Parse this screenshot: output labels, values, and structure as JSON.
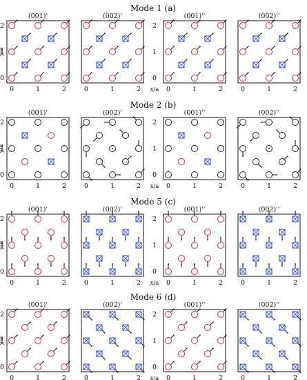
{
  "colors": {
    "red": "#d32f2f",
    "blue": "#1f3fd6",
    "black": "#222222"
  },
  "axis_labels": {
    "y": "y/a",
    "x": "x/a"
  },
  "x_ticks": [
    "0",
    "1",
    "2"
  ],
  "y_ticks": [
    "0",
    "1",
    "2"
  ],
  "modes": [
    {
      "title": "Mode 1 (a)",
      "panels": [
        {
          "label": "(001)'",
          "fill": "mix",
          "arrow": "diag"
        },
        {
          "label": "(002)'",
          "fill": "mix",
          "arrow": "diag"
        },
        {
          "label": "(001)''",
          "fill": "mix",
          "arrow": "diag"
        },
        {
          "label": "(002)''",
          "fill": "mix",
          "arrow": "diag"
        }
      ]
    },
    {
      "title": "Mode 2 (b)",
      "panels": [
        {
          "label": "(001)'",
          "fill": "mode2",
          "arrow": "none"
        },
        {
          "label": "(002)'",
          "fill": "black",
          "arrow": "rot"
        },
        {
          "label": "(001)''",
          "fill": "mode2",
          "arrow": "none"
        },
        {
          "label": "(002)''",
          "fill": "black",
          "arrow": "rot"
        }
      ]
    },
    {
      "title": "Mode 5 (c)",
      "panels": [
        {
          "label": "(001)'",
          "fill": "red",
          "arrow": "vert"
        },
        {
          "label": "(002)'",
          "fill": "blue",
          "arrow": "vert"
        },
        {
          "label": "(001)''",
          "fill": "red",
          "arrow": "vert"
        },
        {
          "label": "(002)''",
          "fill": "blue",
          "arrow": "vert"
        }
      ]
    },
    {
      "title": "Mode 6 (d)",
      "panels": [
        {
          "label": "(001)'",
          "fill": "red",
          "arrow": "diag"
        },
        {
          "label": "(002)'",
          "fill": "blue",
          "arrow": "anti"
        },
        {
          "label": "(001)''",
          "fill": "red",
          "arrow": "diag"
        },
        {
          "label": "(002)''",
          "fill": "blue",
          "arrow": "anti"
        }
      ]
    }
  ]
}
